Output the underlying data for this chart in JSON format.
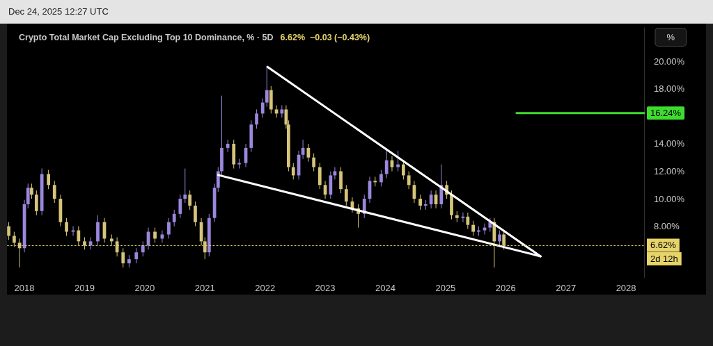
{
  "chart_data": {
    "type": "candlestick",
    "title": "Crypto Total Market Cap Excluding Top 10 Dominance, % · 5D",
    "subtitle": "6.62%  −0.03 (−0.43%)",
    "annotations": [
      "Dec 24, 2025 12:27 UTC",
      "%",
      {
        "text": "2d 12h",
        "x": 2028.3,
        "y": 6.62
      }
    ],
    "xlim": [
      2017.71,
      2028.3
    ],
    "xticks": [
      2018,
      2019,
      2020,
      2021,
      2022,
      2023,
      2024,
      2025,
      2026,
      2027,
      2028
    ],
    "ylim": [
      4.24,
      22.44
    ],
    "yticks": [
      {
        "value": 8,
        "label": "8.00%"
      },
      {
        "value": 10,
        "label": "10.00%"
      },
      {
        "value": 12,
        "label": "12.00%"
      },
      {
        "value": 14,
        "label": "14.00%"
      },
      {
        "value": 18,
        "label": "18.00%"
      },
      {
        "value": 20,
        "label": "20.00%"
      }
    ],
    "grid": false,
    "ref_lines": [
      {
        "axis": "y",
        "value": 6.62,
        "label": "6.62%",
        "color": "#e6d36a",
        "line_style": "dotted"
      }
    ],
    "series": [
      {
        "x": [
          2017.74,
          2017.83,
          2017.92,
          2018.0,
          2018.06,
          2018.12,
          2018.2,
          2018.29,
          2018.4,
          2018.5,
          2018.6,
          2018.7,
          2018.81,
          2018.9,
          2019.0,
          2019.1,
          2019.22,
          2019.33,
          2019.45,
          2019.54,
          2019.64,
          2019.74,
          2019.86,
          2019.97,
          2020.06,
          2020.17,
          2020.29,
          2020.4,
          2020.49,
          2020.59,
          2020.67,
          2020.75,
          2020.84,
          2020.94,
          2021.0,
          2021.07,
          2021.16,
          2021.22,
          2021.28,
          2021.38,
          2021.48,
          2021.57,
          2021.68,
          2021.77,
          2021.86,
          2021.96,
          2022.03,
          2022.1,
          2022.19,
          2022.28,
          2022.35,
          2022.39,
          2022.47,
          2022.56,
          2022.63,
          2022.72,
          2022.81,
          2022.91,
          2023.0,
          2023.09,
          2023.16,
          2023.26,
          2023.35,
          2023.45,
          2023.55,
          2023.65,
          2023.74,
          2023.83,
          2023.93,
          2024.02,
          2024.11,
          2024.21,
          2024.3,
          2024.39,
          2024.48,
          2024.58,
          2024.67,
          2024.76,
          2024.84,
          2024.93,
          2025.02,
          2025.1,
          2025.19,
          2025.29,
          2025.37,
          2025.46,
          2025.55,
          2025.65,
          2025.74,
          2025.81,
          2025.9,
          2025.97
        ],
        "ohlc": [
          [
            8.0,
            8.3,
            7.0,
            7.3
          ],
          [
            7.3,
            7.6,
            6.5,
            6.8
          ],
          [
            6.8,
            7.1,
            5.0,
            6.4
          ],
          [
            6.4,
            9.9,
            6.1,
            9.6
          ],
          [
            9.6,
            11.1,
            9.3,
            10.8
          ],
          [
            10.8,
            11.1,
            10.0,
            10.3
          ],
          [
            10.3,
            10.6,
            8.8,
            9.1
          ],
          [
            9.1,
            12.2,
            8.8,
            11.8
          ],
          [
            11.8,
            12.1,
            10.7,
            11.0
          ],
          [
            11.0,
            11.3,
            9.7,
            10.0
          ],
          [
            10.0,
            10.3,
            8.0,
            8.3
          ],
          [
            8.3,
            8.6,
            7.3,
            7.6
          ],
          [
            7.6,
            8.0,
            7.3,
            7.7
          ],
          [
            7.7,
            8.0,
            6.6,
            6.9
          ],
          [
            6.9,
            7.2,
            6.3,
            6.6
          ],
          [
            6.6,
            7.2,
            6.3,
            6.9
          ],
          [
            6.9,
            8.8,
            6.6,
            8.3
          ],
          [
            8.3,
            8.6,
            6.8,
            7.1
          ],
          [
            7.1,
            7.4,
            6.6,
            6.9
          ],
          [
            6.9,
            7.2,
            5.8,
            6.1
          ],
          [
            6.1,
            6.4,
            5.0,
            5.3
          ],
          [
            5.3,
            5.9,
            5.0,
            5.6
          ],
          [
            5.6,
            6.4,
            5.3,
            6.1
          ],
          [
            6.1,
            6.9,
            5.8,
            6.6
          ],
          [
            6.6,
            7.9,
            6.3,
            7.6
          ],
          [
            7.6,
            7.9,
            6.8,
            7.1
          ],
          [
            7.1,
            7.7,
            6.8,
            7.4
          ],
          [
            7.4,
            8.6,
            7.1,
            8.3
          ],
          [
            8.3,
            9.2,
            8.0,
            8.9
          ],
          [
            8.9,
            10.3,
            8.6,
            10.0
          ],
          [
            10.0,
            12.2,
            9.7,
            10.3
          ],
          [
            10.3,
            10.6,
            9.2,
            9.5
          ],
          [
            9.5,
            9.8,
            8.0,
            8.3
          ],
          [
            8.3,
            8.6,
            6.6,
            6.9
          ],
          [
            6.9,
            7.2,
            5.6,
            6.1
          ],
          [
            6.1,
            8.9,
            5.8,
            8.6
          ],
          [
            8.6,
            11.1,
            8.3,
            10.8
          ],
          [
            10.8,
            12.3,
            10.5,
            12.0
          ],
          [
            12.0,
            17.5,
            11.7,
            13.7
          ],
          [
            13.7,
            14.3,
            13.4,
            14.0
          ],
          [
            14.0,
            14.3,
            12.2,
            12.5
          ],
          [
            12.5,
            12.9,
            12.2,
            12.6
          ],
          [
            12.6,
            14.0,
            12.3,
            13.7
          ],
          [
            13.7,
            15.7,
            13.4,
            15.4
          ],
          [
            15.4,
            16.5,
            15.1,
            16.2
          ],
          [
            16.2,
            17.3,
            15.9,
            17.0
          ],
          [
            17.0,
            19.6,
            16.7,
            17.9
          ],
          [
            17.9,
            18.2,
            16.2,
            16.5
          ],
          [
            16.5,
            16.8,
            15.9,
            16.2
          ],
          [
            16.2,
            16.8,
            15.9,
            16.5
          ],
          [
            16.5,
            16.8,
            15.1,
            15.4
          ],
          [
            15.4,
            15.7,
            12.0,
            12.3
          ],
          [
            12.3,
            12.6,
            11.4,
            11.7
          ],
          [
            11.7,
            13.5,
            11.4,
            13.2
          ],
          [
            13.2,
            14.3,
            12.9,
            13.7
          ],
          [
            13.7,
            14.0,
            12.7,
            13.0
          ],
          [
            13.0,
            13.3,
            12.0,
            12.3
          ],
          [
            12.3,
            12.6,
            10.7,
            11.0
          ],
          [
            11.0,
            11.3,
            10.0,
            10.3
          ],
          [
            10.3,
            12.0,
            10.0,
            11.7
          ],
          [
            11.7,
            12.3,
            11.4,
            12.0
          ],
          [
            12.0,
            12.3,
            10.4,
            10.7
          ],
          [
            10.7,
            11.0,
            9.5,
            9.8
          ],
          [
            9.8,
            10.1,
            9.0,
            9.3
          ],
          [
            9.3,
            9.6,
            7.9,
            8.9
          ],
          [
            8.9,
            10.3,
            8.6,
            10.0
          ],
          [
            10.0,
            11.6,
            9.7,
            11.3
          ],
          [
            11.3,
            11.6,
            10.9,
            11.2
          ],
          [
            11.2,
            12.1,
            10.9,
            11.8
          ],
          [
            11.8,
            13.7,
            11.5,
            12.8
          ],
          [
            12.8,
            13.1,
            12.0,
            12.3
          ],
          [
            12.3,
            13.5,
            12.0,
            12.5
          ],
          [
            12.5,
            12.8,
            11.4,
            11.7
          ],
          [
            11.7,
            12.0,
            10.7,
            11.0
          ],
          [
            11.0,
            11.3,
            9.7,
            10.0
          ],
          [
            10.0,
            10.3,
            9.2,
            9.5
          ],
          [
            9.5,
            9.9,
            9.2,
            9.6
          ],
          [
            9.6,
            10.6,
            9.3,
            10.3
          ],
          [
            10.3,
            10.6,
            9.3,
            9.6
          ],
          [
            9.6,
            12.5,
            9.3,
            11.0
          ],
          [
            11.0,
            11.3,
            10.0,
            10.3
          ],
          [
            10.3,
            10.6,
            8.5,
            8.8
          ],
          [
            8.8,
            9.1,
            8.3,
            8.6
          ],
          [
            8.6,
            9.0,
            8.3,
            8.7
          ],
          [
            8.7,
            9.0,
            7.8,
            8.1
          ],
          [
            8.1,
            8.4,
            7.3,
            7.6
          ],
          [
            7.6,
            8.0,
            7.3,
            7.7
          ],
          [
            7.7,
            8.2,
            7.4,
            7.9
          ],
          [
            7.9,
            8.6,
            7.6,
            8.3
          ],
          [
            8.3,
            8.6,
            5.0,
            6.9
          ],
          [
            6.9,
            7.7,
            6.6,
            7.4
          ],
          [
            7.4,
            7.7,
            6.3,
            6.62
          ]
        ],
        "colors": [
          "#d6c47a",
          "#d6c47a",
          "#d6c47a",
          "#9b87dd",
          "#9b87dd",
          "#d6c47a",
          "#d6c47a",
          "#9b87dd",
          "#d6c47a",
          "#d6c47a",
          "#d6c47a",
          "#d6c47a",
          "#9b87dd",
          "#d6c47a",
          "#d6c47a",
          "#9b87dd",
          "#9b87dd",
          "#d6c47a",
          "#d6c47a",
          "#d6c47a",
          "#d6c47a",
          "#9b87dd",
          "#9b87dd",
          "#9b87dd",
          "#9b87dd",
          "#d6c47a",
          "#9b87dd",
          "#9b87dd",
          "#9b87dd",
          "#9b87dd",
          "#9b87dd",
          "#d6c47a",
          "#d6c47a",
          "#d6c47a",
          "#d6c47a",
          "#9b87dd",
          "#9b87dd",
          "#9b87dd",
          "#9b87dd",
          "#9b87dd",
          "#d6c47a",
          "#9b87dd",
          "#9b87dd",
          "#9b87dd",
          "#9b87dd",
          "#9b87dd",
          "#9b87dd",
          "#d6c47a",
          "#d6c47a",
          "#9b87dd",
          "#d6c47a",
          "#d6c47a",
          "#d6c47a",
          "#9b87dd",
          "#9b87dd",
          "#d6c47a",
          "#d6c47a",
          "#d6c47a",
          "#d6c47a",
          "#9b87dd",
          "#9b87dd",
          "#d6c47a",
          "#d6c47a",
          "#d6c47a",
          "#d6c47a",
          "#9b87dd",
          "#9b87dd",
          "#d6c47a",
          "#9b87dd",
          "#9b87dd",
          "#d6c47a",
          "#9b87dd",
          "#d6c47a",
          "#d6c47a",
          "#d6c47a",
          "#d6c47a",
          "#9b87dd",
          "#9b87dd",
          "#d6c47a",
          "#9b87dd",
          "#d6c47a",
          "#d6c47a",
          "#d6c47a",
          "#9b87dd",
          "#d6c47a",
          "#d6c47a",
          "#9b87dd",
          "#9b87dd",
          "#9b87dd",
          "#d6c47a",
          "#9b87dd",
          "#d6c47a"
        ]
      },
      {
        "type": "line",
        "x": [
          2022.04,
          2026.58
        ],
        "values": [
          19.6,
          5.81
        ],
        "color": "#ffffff"
      },
      {
        "type": "line",
        "x": [
          2021.22,
          2026.58
        ],
        "values": [
          11.73,
          5.81
        ],
        "color": "#ffffff"
      },
      {
        "type": "line",
        "x": [
          2026.18,
          2028.3
        ],
        "values": [
          16.24,
          16.24
        ],
        "color": "#3ddc2f",
        "value_labels": [
          null,
          "16.24%"
        ]
      }
    ]
  }
}
